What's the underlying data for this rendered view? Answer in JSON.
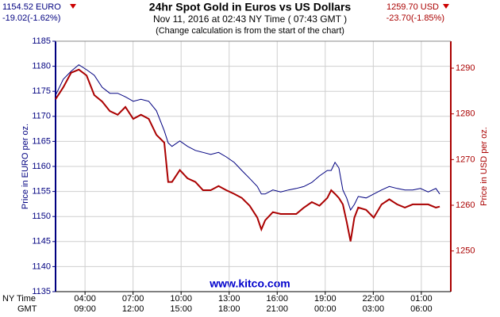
{
  "chart_data": {
    "type": "line",
    "title": "24hr Spot Gold in Euros vs US Dollars",
    "subtitle": "Nov 11, 2016 at 02:43 NY Time ( 07:43 GMT )",
    "note": "(Change calculation is from the start of the chart)",
    "left_price": "1154.52 EURO",
    "left_change": "-19.02(-1.62%)",
    "right_price": "1259.70 USD",
    "right_change": "-23.70(-1.85%)",
    "watermark": "www.kitco.com",
    "ylabel": "Price in EURO per oz.",
    "y2label": "Price in USD per oz.",
    "xrow_labels": [
      "NY Time",
      "GMT"
    ],
    "grid": true,
    "xlim": [
      2.16,
      26.84
    ],
    "xticks": [
      {
        "value": 4,
        "label": "04:00"
      },
      {
        "value": 7,
        "label": "07:00"
      },
      {
        "value": 10,
        "label": "10:00"
      },
      {
        "value": 13,
        "label": "13:00"
      },
      {
        "value": 16,
        "label": "16:00"
      },
      {
        "value": 19,
        "label": "19:00"
      },
      {
        "value": 22,
        "label": "22:00"
      },
      {
        "value": 25,
        "label": "01:00"
      }
    ],
    "gmt_ticks": [
      "09:00",
      "12:00",
      "15:00",
      "18:00",
      "21:00",
      "00:00",
      "03:00",
      "06:00"
    ],
    "ylim": [
      1135,
      1185
    ],
    "yticks": [
      1135,
      1140,
      1145,
      1150,
      1155,
      1160,
      1165,
      1170,
      1175,
      1180,
      1185
    ],
    "y2lim": [
      1241.1,
      1295.9
    ],
    "y2ticks": [
      1250,
      1260,
      1270,
      1280,
      1290
    ],
    "x": [
      2.16,
      2.64,
      3.13,
      3.61,
      4.1,
      4.58,
      5.07,
      5.55,
      6.04,
      6.52,
      7.01,
      7.49,
      7.98,
      8.46,
      8.95,
      9.19,
      9.43,
      9.92,
      10.4,
      10.89,
      11.37,
      11.85,
      12.34,
      12.82,
      13.31,
      13.79,
      14.28,
      14.76,
      15.01,
      15.25,
      15.73,
      16.22,
      16.7,
      17.19,
      17.67,
      18.16,
      18.64,
      19.13,
      19.37,
      19.61,
      19.85,
      20.1,
      20.34,
      20.58,
      20.82,
      21.06,
      21.55,
      22.03,
      22.52,
      23.0,
      23.49,
      23.97,
      24.46,
      24.94,
      25.43,
      25.91,
      26.15
    ],
    "series": [
      {
        "name": "EURO",
        "color": "#000080",
        "axis": "y",
        "values": [
          1174.2,
          1177.4,
          1179.0,
          1180.3,
          1179.3,
          1178.2,
          1175.8,
          1174.6,
          1174.6,
          1173.9,
          1173.0,
          1173.4,
          1173.0,
          1171.1,
          1167.1,
          1164.7,
          1164.0,
          1165.1,
          1164.0,
          1163.2,
          1162.8,
          1162.4,
          1162.8,
          1161.9,
          1160.8,
          1159.2,
          1157.6,
          1156.0,
          1154.5,
          1154.5,
          1155.3,
          1154.9,
          1155.3,
          1155.6,
          1156.0,
          1156.8,
          1158.1,
          1159.2,
          1159.2,
          1160.8,
          1159.7,
          1155.3,
          1153.7,
          1151.3,
          1152.4,
          1154.0,
          1153.7,
          1154.5,
          1155.3,
          1156.0,
          1155.6,
          1155.3,
          1155.3,
          1155.6,
          1154.9,
          1155.6,
          1154.5
        ]
      },
      {
        "name": "USD",
        "color": "#aa0000",
        "axis": "y2",
        "values": [
          1283.2,
          1285.8,
          1289.0,
          1289.7,
          1288.4,
          1284.1,
          1282.7,
          1280.6,
          1279.8,
          1281.5,
          1278.9,
          1279.8,
          1278.9,
          1275.4,
          1273.7,
          1265.1,
          1265.1,
          1267.7,
          1265.9,
          1265.1,
          1263.3,
          1263.3,
          1264.2,
          1263.3,
          1262.5,
          1261.6,
          1259.9,
          1257.3,
          1254.7,
          1256.7,
          1258.5,
          1258.1,
          1258.1,
          1258.1,
          1259.5,
          1260.7,
          1259.9,
          1261.6,
          1263.3,
          1262.5,
          1261.6,
          1260.2,
          1256.4,
          1252.1,
          1257.3,
          1259.5,
          1259.0,
          1257.3,
          1260.2,
          1261.3,
          1260.2,
          1259.5,
          1260.2,
          1260.2,
          1260.2,
          1259.5,
          1259.7
        ]
      }
    ]
  }
}
